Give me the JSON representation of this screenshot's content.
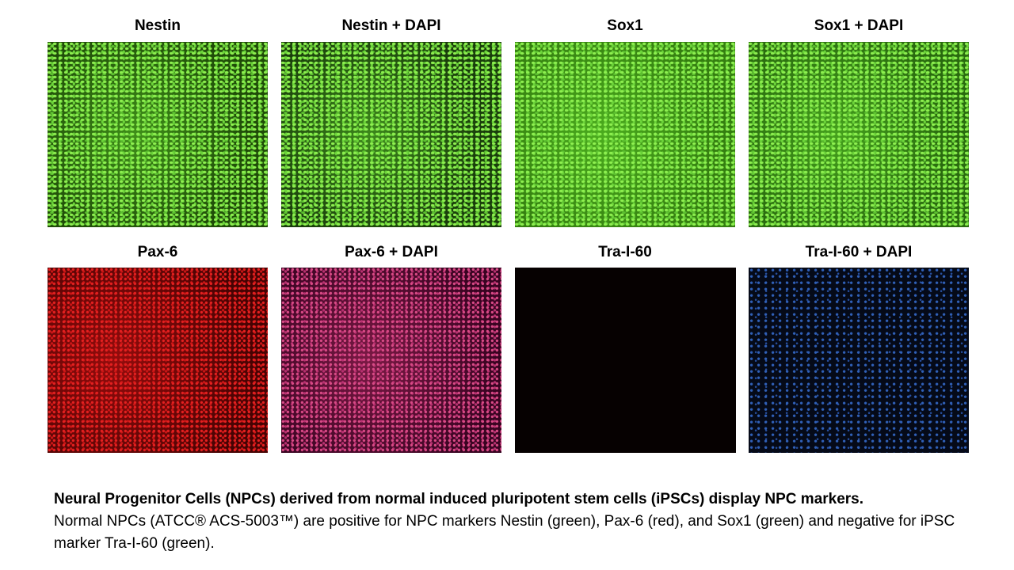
{
  "panels": [
    {
      "label": "Nestin"
    },
    {
      "label": "Nestin + DAPI"
    },
    {
      "label": "Sox1"
    },
    {
      "label": "Sox1 + DAPI"
    },
    {
      "label": "Pax-6"
    },
    {
      "label": "Pax-6 + DAPI"
    },
    {
      "label": "Tra-I-60"
    },
    {
      "label": "Tra-I-60 + DAPI"
    }
  ],
  "caption": {
    "heading": "Neural Progenitor Cells (NPCs) derived from normal induced pluripotent stem cells (iPSCs) display NPC markers.",
    "body": "Normal NPCs (ATCC® ACS-5003™) are positive for NPC markers Nestin (green), Pax-6 (red), and Sox1 (green) and negative for iPSC marker Tra-I-60 (green)."
  }
}
